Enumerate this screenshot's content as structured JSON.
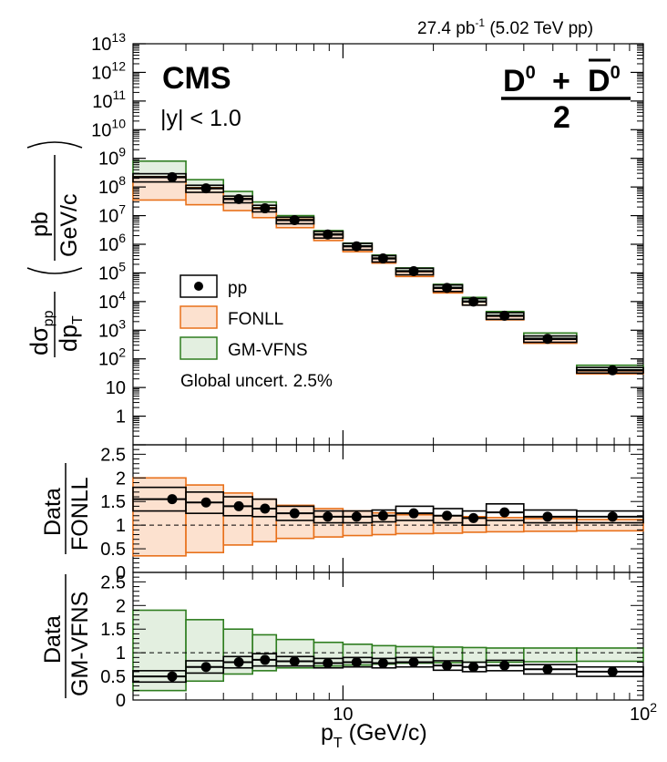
{
  "header": {
    "lumi": "27.4 pb",
    "lumi_sup": "-1",
    "energy": " (5.02 TeV pp)"
  },
  "labels": {
    "experiment": "CMS",
    "rapidity": "|y| < 1.0",
    "particle_num_left": "D",
    "particle_num_right": "D",
    "particle_sup": "0",
    "particle_plus": "+",
    "particle_den": "2",
    "global_uncert": "Global uncert. 2.5%",
    "ylabel_top_num": "dσ",
    "ylabel_top_num_sub": "pp",
    "ylabel_top_den": "dp",
    "ylabel_top_den_sub": "T",
    "ylabel_unit_num": "pb",
    "ylabel_unit_den": "GeV/c",
    "ylabel_mid_num": "Data",
    "ylabel_mid_den": "FONLL",
    "ylabel_bot_num": "Data",
    "ylabel_bot_den": "GM-VFNS",
    "xlabel": "p",
    "xlabel_sub": "T",
    "xlabel_unit": " (GeV/c)"
  },
  "legend": [
    {
      "key": "pp",
      "label": "pp"
    },
    {
      "key": "fonll",
      "label": "FONLL"
    },
    {
      "key": "gmvfns",
      "label": "GM-VFNS"
    }
  ],
  "colors": {
    "data": "#000000",
    "fonll_line": "#e8701a",
    "fonll_fill": "#fce1cf",
    "gm_line": "#2e7d1f",
    "gm_fill": "#e3efe0"
  },
  "chart_data": [
    {
      "type": "scatter",
      "panel": "cross-section",
      "xscale": "log",
      "yscale": "log",
      "xlim": [
        2,
        100
      ],
      "ylim": [
        0.1,
        10000000000000.0
      ],
      "x_tick_labels": [
        "10",
        "10^2"
      ],
      "y_tick_labels": [
        "1",
        "10",
        "10^2",
        "10^3",
        "10^4",
        "10^5",
        "10^6",
        "10^7",
        "10^8",
        "10^9",
        "10^10",
        "10^11",
        "10^12",
        "10^13"
      ],
      "bins": [
        [
          2,
          3
        ],
        [
          3,
          4
        ],
        [
          4,
          5
        ],
        [
          5,
          6
        ],
        [
          6,
          8
        ],
        [
          8,
          10
        ],
        [
          10,
          12.5
        ],
        [
          12.5,
          15
        ],
        [
          15,
          20
        ],
        [
          20,
          25
        ],
        [
          25,
          30
        ],
        [
          30,
          40
        ],
        [
          40,
          60
        ],
        [
          60,
          100
        ]
      ],
      "series": [
        {
          "name": "pp",
          "x": [
            2.7,
            3.5,
            4.5,
            5.5,
            6.9,
            8.9,
            11.1,
            13.6,
            17.2,
            22.2,
            27.2,
            34.5,
            48,
            79
          ],
          "y": [
            220000000.0,
            90000000.0,
            38000000.0,
            18000000.0,
            7000000.0,
            2200000.0,
            850000.0,
            320000.0,
            115000.0,
            30000.0,
            10000.0,
            3200.0,
            500,
            40
          ],
          "stat_box_low": [
            150000000.0,
            65000000.0,
            28000000.0,
            13500000.0,
            5200000.0,
            1650000.0,
            640000.0,
            240000.0,
            86000.0,
            22500.0,
            7500.0,
            2400.0,
            380,
            32
          ],
          "stat_box_high": [
            290000000.0,
            115000000.0,
            48000000.0,
            23000000.0,
            8800000.0,
            2800000.0,
            1070000.0,
            400000.0,
            145000.0,
            38000.0,
            12700.0,
            4100.0,
            630,
            50
          ]
        },
        {
          "name": "FONLL",
          "low": [
            35000000.0,
            24000000.0,
            15000000.0,
            8500000.0,
            3800000.0,
            1350000.0,
            550000.0,
            220000.0,
            75000.0,
            20000.0,
            7500.0,
            2300.0,
            350,
            30
          ],
          "high": [
            230000000.0,
            95000000.0,
            40000000.0,
            19000000.0,
            7500000.0,
            2300000.0,
            870000.0,
            330000.0,
            110000.0,
            29000.0,
            10000.0,
            3100.0,
            480,
            38
          ]
        },
        {
          "name": "GM-VFNS",
          "low": [
            55000000.0,
            40000000.0,
            22000000.0,
            12000000.0,
            5000000.0,
            1800000.0,
            700000.0,
            280000.0,
            100000.0,
            25000.0,
            8000.0,
            2700.0,
            420,
            36
          ],
          "high": [
            800000000.0,
            180000000.0,
            70000000.0,
            30000000.0,
            10000000.0,
            3000000.0,
            1100000.0,
            420000.0,
            150000.0,
            40000.0,
            14000.0,
            4500.0,
            800,
            60
          ]
        }
      ]
    },
    {
      "type": "scatter",
      "panel": "ratio-fonll",
      "xscale": "log",
      "xlim": [
        2,
        100
      ],
      "ylim": [
        0,
        2.7
      ],
      "y_tick_labels": [
        "0",
        "0.5",
        "1",
        "1.5",
        "2",
        "2.5"
      ],
      "bins": [
        [
          2,
          3
        ],
        [
          3,
          4
        ],
        [
          4,
          5
        ],
        [
          5,
          6
        ],
        [
          6,
          8
        ],
        [
          8,
          10
        ],
        [
          10,
          12.5
        ],
        [
          12.5,
          15
        ],
        [
          15,
          20
        ],
        [
          20,
          25
        ],
        [
          25,
          30
        ],
        [
          30,
          40
        ],
        [
          40,
          60
        ],
        [
          60,
          100
        ]
      ],
      "series": [
        {
          "name": "Data/FONLL",
          "x": [
            2.7,
            3.5,
            4.5,
            5.5,
            6.9,
            8.9,
            11.1,
            13.6,
            17.2,
            22.2,
            27.2,
            34.5,
            48,
            79
          ],
          "y": [
            1.55,
            1.48,
            1.4,
            1.35,
            1.25,
            1.18,
            1.18,
            1.2,
            1.25,
            1.2,
            1.15,
            1.27,
            1.18,
            1.18
          ],
          "low": [
            1.3,
            1.25,
            1.2,
            1.18,
            1.1,
            1.05,
            1.05,
            1.07,
            1.1,
            1.05,
            1.0,
            1.1,
            1.05,
            1.05
          ],
          "high": [
            1.8,
            1.7,
            1.6,
            1.55,
            1.4,
            1.3,
            1.3,
            1.32,
            1.4,
            1.35,
            1.3,
            1.45,
            1.32,
            1.3
          ]
        },
        {
          "name": "FONLL",
          "low": [
            0.35,
            0.42,
            0.58,
            0.65,
            0.72,
            0.75,
            0.78,
            0.8,
            0.82,
            0.83,
            0.85,
            0.86,
            0.87,
            0.88
          ],
          "high": [
            2.0,
            1.85,
            1.68,
            1.55,
            1.42,
            1.35,
            1.3,
            1.26,
            1.22,
            1.2,
            1.18,
            1.16,
            1.14,
            1.12
          ]
        }
      ]
    },
    {
      "type": "scatter",
      "panel": "ratio-gmvfns",
      "xscale": "log",
      "xlim": [
        2,
        100
      ],
      "ylim": [
        0,
        2.7
      ],
      "y_tick_labels": [
        "0",
        "0.5",
        "1",
        "1.5",
        "2",
        "2.5"
      ],
      "bins": [
        [
          2,
          3
        ],
        [
          3,
          4
        ],
        [
          4,
          5
        ],
        [
          5,
          6
        ],
        [
          6,
          8
        ],
        [
          8,
          10
        ],
        [
          10,
          12.5
        ],
        [
          12.5,
          15
        ],
        [
          15,
          20
        ],
        [
          20,
          25
        ],
        [
          25,
          30
        ],
        [
          30,
          40
        ],
        [
          40,
          60
        ],
        [
          60,
          100
        ]
      ],
      "series": [
        {
          "name": "Data/GM-VFNS",
          "x": [
            2.7,
            3.5,
            4.5,
            5.5,
            6.9,
            8.9,
            11.1,
            13.6,
            17.2,
            22.2,
            27.2,
            34.5,
            48,
            79
          ],
          "y": [
            0.5,
            0.7,
            0.8,
            0.85,
            0.82,
            0.78,
            0.8,
            0.78,
            0.8,
            0.73,
            0.7,
            0.73,
            0.65,
            0.6
          ],
          "low": [
            0.38,
            0.57,
            0.68,
            0.72,
            0.72,
            0.68,
            0.7,
            0.68,
            0.7,
            0.63,
            0.6,
            0.62,
            0.55,
            0.5
          ],
          "high": [
            0.62,
            0.83,
            0.92,
            0.98,
            0.92,
            0.88,
            0.9,
            0.88,
            0.9,
            0.83,
            0.8,
            0.84,
            0.75,
            0.7
          ]
        },
        {
          "name": "GM-VFNS",
          "low": [
            0.2,
            0.4,
            0.55,
            0.62,
            0.68,
            0.72,
            0.74,
            0.76,
            0.78,
            0.79,
            0.8,
            0.8,
            0.81,
            0.82
          ],
          "high": [
            1.9,
            1.7,
            1.5,
            1.38,
            1.28,
            1.22,
            1.18,
            1.15,
            1.13,
            1.12,
            1.11,
            1.1,
            1.1,
            1.1
          ]
        }
      ]
    }
  ]
}
